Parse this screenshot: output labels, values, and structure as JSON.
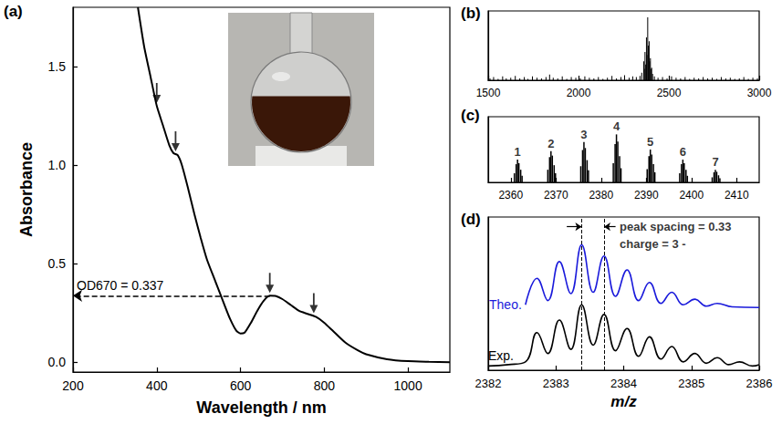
{
  "chart_data": [
    {
      "type": "line",
      "panel_label": "(a)",
      "x_label": "Wavelength / nm",
      "y_label": "Absorbance",
      "x": [
        355,
        370,
        385,
        400,
        415,
        430,
        440,
        450,
        460,
        475,
        490,
        505,
        520,
        540,
        560,
        575,
        590,
        600,
        610,
        625,
        640,
        655,
        670,
        685,
        700,
        720,
        740,
        760,
        780,
        800,
        820,
        850,
        880,
        900,
        950,
        1000,
        1050,
        1100
      ],
      "values": [
        1.8,
        1.6,
        1.45,
        1.3,
        1.2,
        1.1,
        1.06,
        1.05,
        1.0,
        0.88,
        0.75,
        0.63,
        0.52,
        0.41,
        0.3,
        0.22,
        0.16,
        0.145,
        0.15,
        0.2,
        0.26,
        0.31,
        0.337,
        0.335,
        0.32,
        0.29,
        0.26,
        0.245,
        0.23,
        0.2,
        0.16,
        0.1,
        0.06,
        0.04,
        0.015,
        0.005,
        0.002,
        0
      ],
      "color": "#000000",
      "xlim": [
        200,
        1100
      ],
      "xticks": [
        200,
        400,
        600,
        800,
        1000
      ],
      "ylim": [
        -0.05,
        1.8
      ],
      "yticks": [
        {
          "value": 0,
          "label": "0.0"
        },
        0.5,
        {
          "value": 1,
          "label": "1.0"
        },
        1.5
      ],
      "grid": false,
      "annotations": [
        {
          "text": "OD670 = 0.337",
          "x": 670,
          "y": 0.337
        }
      ],
      "arrows": [
        {
          "x": 400,
          "y": 1.3
        },
        {
          "x": 445,
          "y": 1.055
        },
        {
          "x": 670,
          "y": 0.337
        },
        {
          "x": 775,
          "y": 0.234
        }
      ]
    },
    {
      "type": "bar",
      "panel_label": "(b)",
      "x": [
        1510,
        1530,
        1555,
        1580,
        1600,
        1625,
        1650,
        1675,
        1700,
        1720,
        1745,
        1770,
        1795,
        1820,
        1840,
        1860,
        1885,
        1910,
        1935,
        1960,
        1985,
        2010,
        2035,
        2060,
        2085,
        2110,
        2135,
        2160,
        2185,
        2210,
        2235,
        2255,
        2280,
        2300,
        2320,
        2340,
        2350,
        2361,
        2364,
        2368,
        2372,
        2376,
        2379,
        2383,
        2386,
        2391,
        2394,
        2398,
        2401,
        2405,
        2410,
        2420,
        2440,
        2465,
        2490,
        2515,
        2540,
        2565,
        2590,
        2615,
        2640,
        2665,
        2690,
        2715,
        2740,
        2765,
        2790,
        2815,
        2840,
        2865,
        2890,
        2915,
        2940,
        2965,
        2990
      ],
      "values": [
        3,
        5,
        2,
        6,
        3,
        4,
        7,
        3,
        5,
        2,
        6,
        4,
        3,
        5,
        9,
        4,
        3,
        6,
        2,
        5,
        4,
        3,
        6,
        4,
        3,
        5,
        2,
        4,
        7,
        3,
        5,
        8,
        4,
        6,
        5,
        7,
        12,
        30,
        18,
        45,
        25,
        68,
        40,
        100,
        55,
        62,
        30,
        35,
        18,
        20,
        10,
        6,
        4,
        5,
        3,
        6,
        4,
        3,
        5,
        2,
        4,
        3,
        5,
        3,
        4,
        2,
        5,
        3,
        4,
        2,
        3,
        5,
        2,
        4,
        3
      ],
      "color": "#000000",
      "xlim": [
        1500,
        3000
      ],
      "xticks": [
        1500,
        2000,
        2500,
        3000
      ],
      "ylim": [
        0,
        110
      ],
      "yticks": [],
      "tick_labels": "x",
      "grid": false
    },
    {
      "type": "bar",
      "panel_label": "(c)",
      "x": [
        2360.8,
        2361.2,
        2361.5,
        2361.8,
        2362.2,
        2362.5,
        2368.2,
        2368.6,
        2368.9,
        2369.2,
        2369.6,
        2369.9,
        2375.5,
        2375.9,
        2376.2,
        2376.5,
        2376.9,
        2377.2,
        2382.7,
        2383.1,
        2383.4,
        2383.7,
        2384.1,
        2384.4,
        2390.2,
        2390.6,
        2390.9,
        2391.2,
        2391.6,
        2391.9,
        2397.4,
        2397.8,
        2398.1,
        2398.4,
        2398.8,
        2399.1,
        2404.6,
        2405.0,
        2405.3,
        2405.6,
        2406.0,
        2406.3
      ],
      "values": [
        18,
        36,
        45,
        38,
        25,
        13,
        25,
        50,
        62,
        53,
        34,
        18,
        32,
        64,
        80,
        68,
        44,
        24,
        38,
        76,
        95,
        81,
        52,
        28,
        26,
        52,
        65,
        55,
        36,
        20,
        18,
        36,
        45,
        38,
        25,
        13,
        10,
        20,
        25,
        21,
        14,
        8
      ],
      "color": "#000000",
      "xlim": [
        2355,
        2415
      ],
      "xticks": [
        2360,
        2370,
        2380,
        2390,
        2400,
        2410
      ],
      "ylim": [
        0,
        130
      ],
      "yticks": [],
      "tick_labels": "x",
      "grid": false,
      "peak_labels": {
        "x": [
          2361.5,
          2368.9,
          2376.2,
          2383.4,
          2390.9,
          2398.1,
          2405.3
        ],
        "y": [
          45,
          62,
          80,
          95,
          65,
          45,
          25
        ],
        "labels": [
          "1",
          "2",
          "3",
          "4",
          "5",
          "6",
          "7"
        ]
      }
    },
    {
      "type": "line",
      "panel_label": "(d)",
      "x_label": "m/z",
      "series": [
        {
          "name": "Theo.",
          "color": "#1a1adb",
          "x": [
            2382.55,
            2382.72,
            2382.88,
            2383.05,
            2383.22,
            2383.38,
            2383.55,
            2383.71,
            2383.88,
            2384.05,
            2384.22,
            2384.38,
            2384.55,
            2384.71,
            2384.88,
            2385.05,
            2385.22,
            2385.38,
            2385.6,
            2386
          ],
          "values": [
            0.47,
            0.66,
            0.5,
            0.78,
            0.55,
            0.9,
            0.56,
            0.82,
            0.53,
            0.72,
            0.5,
            0.63,
            0.48,
            0.56,
            0.47,
            0.51,
            0.46,
            0.48,
            0.455,
            0.45
          ]
        },
        {
          "name": "Exp.",
          "color": "#000000",
          "x": [
            2382,
            2382.3,
            2382.55,
            2382.72,
            2382.88,
            2383.05,
            2383.22,
            2383.38,
            2383.55,
            2383.71,
            2383.88,
            2384.05,
            2384.22,
            2384.38,
            2384.55,
            2384.71,
            2384.88,
            2385.05,
            2385.22,
            2385.38,
            2385.55,
            2385.71,
            2385.9,
            2386
          ],
          "values": [
            0.03,
            0.04,
            0.06,
            0.27,
            0.12,
            0.36,
            0.15,
            0.47,
            0.18,
            0.4,
            0.14,
            0.3,
            0.1,
            0.24,
            0.08,
            0.17,
            0.06,
            0.12,
            0.05,
            0.09,
            0.04,
            0.06,
            0.03,
            0.04
          ]
        }
      ],
      "xlim": [
        2382,
        2386
      ],
      "xticks": [
        2382,
        2383,
        2384,
        2385,
        2386
      ],
      "ylim": [
        0,
        1.1
      ],
      "yticks": [],
      "tick_labels": "x",
      "grid": false,
      "reference_lines": [
        2383.38,
        2383.71
      ],
      "annotations": [
        {
          "text": "peak spacing = 0.33"
        },
        {
          "text": "charge = 3 -"
        }
      ]
    }
  ]
}
